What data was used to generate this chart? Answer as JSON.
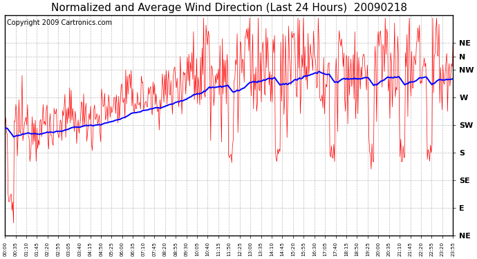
{
  "title": "Normalized and Average Wind Direction (Last 24 Hours)  20090218",
  "copyright": "Copyright 2009 Cartronics.com",
  "ytick_labels": [
    "NE",
    "N",
    "NW",
    "W",
    "SW",
    "S",
    "SE",
    "E",
    "NE"
  ],
  "ytick_values": [
    360,
    337.5,
    315,
    270,
    225,
    180,
    135,
    90,
    45
  ],
  "ymin": 45,
  "ymax": 405,
  "xtick_labels": [
    "00:00",
    "00:35",
    "01:10",
    "01:45",
    "02:20",
    "02:55",
    "03:05",
    "03:40",
    "04:15",
    "04:50",
    "05:25",
    "06:00",
    "06:35",
    "07:10",
    "07:45",
    "08:20",
    "08:55",
    "09:30",
    "10:05",
    "10:40",
    "11:15",
    "11:50",
    "12:25",
    "13:00",
    "13:35",
    "14:10",
    "14:45",
    "15:20",
    "15:55",
    "16:30",
    "17:05",
    "17:40",
    "18:15",
    "18:50",
    "19:25",
    "20:00",
    "20:35",
    "21:10",
    "21:45",
    "22:20",
    "22:55",
    "23:20",
    "23:55"
  ],
  "title_fontsize": 11,
  "copyright_fontsize": 7,
  "bg_color": "#ffffff",
  "plot_bg_color": "#ffffff",
  "grid_color": "#bbbbbb",
  "red_line_color": "#ff0000",
  "blue_line_color": "#0000ff"
}
